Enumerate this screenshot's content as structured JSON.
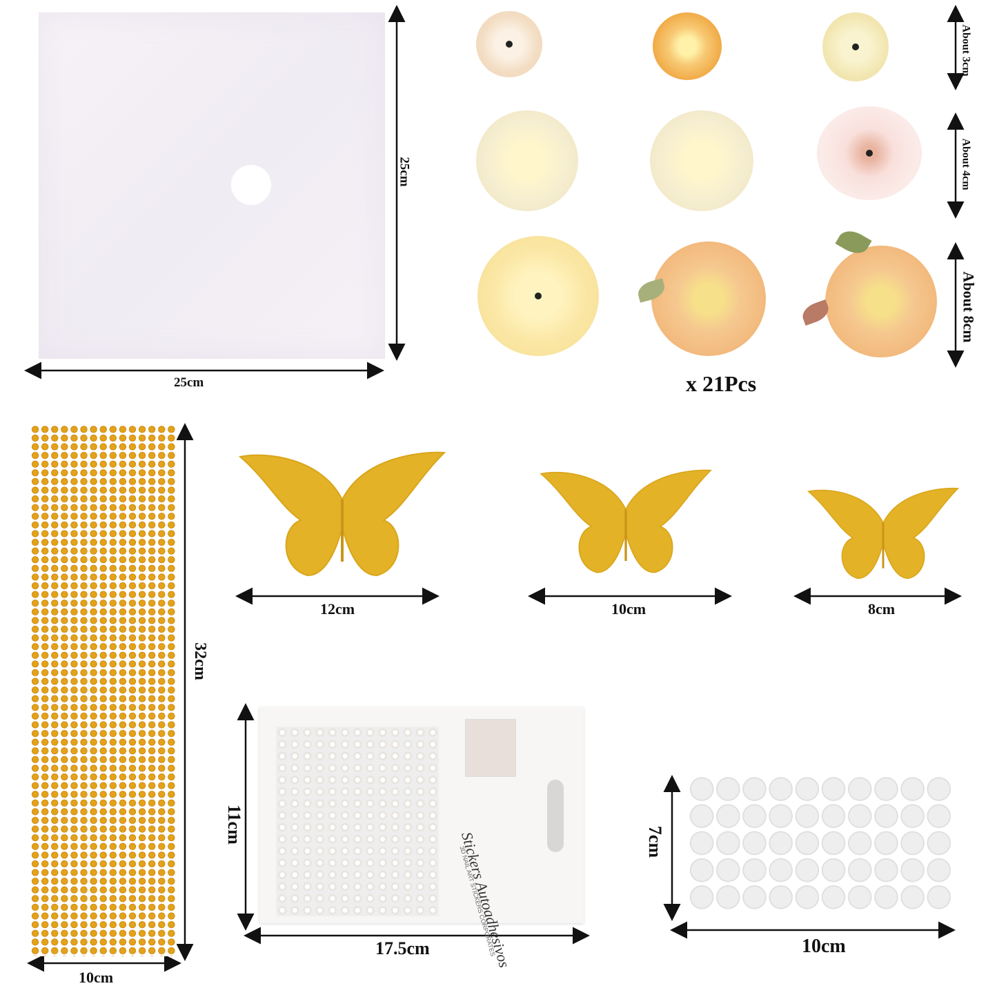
{
  "labels": {
    "sheet_width": "25cm",
    "sheet_height": "25cm",
    "flower_row1": "About 3cm",
    "flower_row2": "About 4cm",
    "flower_row3": "About 8cm",
    "flower_count": "x 21Pcs",
    "butterfly_large": "12cm",
    "butterfly_medium": "10cm",
    "butterfly_small": "8cm",
    "rhinestone_height": "32cm",
    "rhinestone_width": "10cm",
    "pearl_height": "11cm",
    "pearl_width": "17.5cm",
    "dots_height": "7cm",
    "dots_width": "10cm"
  },
  "pearl_card": {
    "brand_line1": "Stickers",
    "brand_line2": "Autoadhesivos",
    "sub_line1": "3D NAIL ART",
    "sub_line2": "STICKERS CORPORATES"
  },
  "colors": {
    "gold": "#e3b226",
    "rhinestone": "#e3a21a",
    "cream": "#f6eed0",
    "peach": "#f2b77a"
  }
}
